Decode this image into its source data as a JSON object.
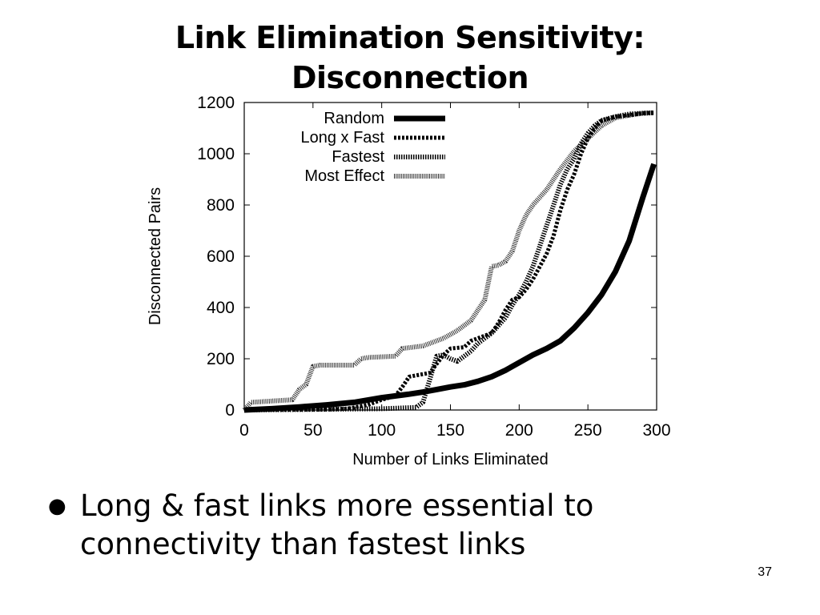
{
  "slide": {
    "title_line1": "Link Elimination Sensitivity:",
    "title_line2": "Disconnection",
    "bullet": "Long & fast links more essential to connectivity than fastest links",
    "page_number": "37"
  },
  "chart_data": {
    "type": "line",
    "title": "",
    "xlabel": "Number of Links Eliminated",
    "ylabel": "Disconnected Pairs",
    "xlim": [
      0,
      300
    ],
    "ylim": [
      0,
      1200
    ],
    "xticks": [
      0,
      50,
      100,
      150,
      200,
      250,
      300
    ],
    "yticks": [
      0,
      200,
      400,
      600,
      800,
      1000,
      1200
    ],
    "grid": false,
    "legend_position": "top-left",
    "series": [
      {
        "name": "Random",
        "style": "solid-thick",
        "color": "#000000",
        "points": [
          [
            0,
            0
          ],
          [
            20,
            5
          ],
          [
            40,
            12
          ],
          [
            60,
            20
          ],
          [
            80,
            30
          ],
          [
            100,
            48
          ],
          [
            120,
            62
          ],
          [
            130,
            70
          ],
          [
            140,
            80
          ],
          [
            150,
            90
          ],
          [
            160,
            98
          ],
          [
            170,
            112
          ],
          [
            180,
            130
          ],
          [
            190,
            155
          ],
          [
            200,
            185
          ],
          [
            210,
            215
          ],
          [
            220,
            240
          ],
          [
            230,
            270
          ],
          [
            240,
            320
          ],
          [
            250,
            380
          ],
          [
            260,
            450
          ],
          [
            270,
            540
          ],
          [
            280,
            660
          ],
          [
            290,
            830
          ],
          [
            298,
            960
          ]
        ]
      },
      {
        "name": "Long x Fast",
        "style": "dashed",
        "color": "#000000",
        "points": [
          [
            0,
            0
          ],
          [
            60,
            2
          ],
          [
            75,
            5
          ],
          [
            90,
            20
          ],
          [
            100,
            40
          ],
          [
            110,
            55
          ],
          [
            115,
            90
          ],
          [
            120,
            130
          ],
          [
            125,
            135
          ],
          [
            135,
            145
          ],
          [
            140,
            180
          ],
          [
            145,
            215
          ],
          [
            150,
            240
          ],
          [
            160,
            245
          ],
          [
            165,
            270
          ],
          [
            170,
            280
          ],
          [
            180,
            300
          ],
          [
            185,
            340
          ],
          [
            190,
            390
          ],
          [
            195,
            430
          ],
          [
            200,
            440
          ],
          [
            205,
            470
          ],
          [
            210,
            510
          ],
          [
            215,
            560
          ],
          [
            220,
            610
          ],
          [
            225,
            680
          ],
          [
            230,
            780
          ],
          [
            235,
            860
          ],
          [
            240,
            920
          ],
          [
            245,
            1000
          ],
          [
            250,
            1060
          ],
          [
            255,
            1100
          ],
          [
            260,
            1130
          ],
          [
            270,
            1145
          ],
          [
            280,
            1150
          ],
          [
            290,
            1158
          ],
          [
            298,
            1160
          ]
        ]
      },
      {
        "name": "Fastest",
        "style": "dotted",
        "color": "#000000",
        "points": [
          [
            0,
            0
          ],
          [
            100,
            5
          ],
          [
            125,
            10
          ],
          [
            130,
            30
          ],
          [
            135,
            120
          ],
          [
            140,
            210
          ],
          [
            145,
            215
          ],
          [
            150,
            200
          ],
          [
            155,
            190
          ],
          [
            160,
            210
          ],
          [
            165,
            230
          ],
          [
            170,
            260
          ],
          [
            175,
            280
          ],
          [
            180,
            300
          ],
          [
            185,
            330
          ],
          [
            190,
            360
          ],
          [
            195,
            410
          ],
          [
            200,
            450
          ],
          [
            205,
            500
          ],
          [
            210,
            560
          ],
          [
            215,
            640
          ],
          [
            220,
            720
          ],
          [
            225,
            800
          ],
          [
            230,
            880
          ],
          [
            235,
            940
          ],
          [
            240,
            980
          ],
          [
            245,
            1040
          ],
          [
            250,
            1080
          ],
          [
            255,
            1110
          ],
          [
            260,
            1130
          ],
          [
            270,
            1145
          ],
          [
            280,
            1155
          ],
          [
            290,
            1158
          ],
          [
            298,
            1160
          ]
        ]
      },
      {
        "name": "Most Effect",
        "style": "dotted-grey",
        "color": "#333333",
        "points": [
          [
            0,
            0
          ],
          [
            5,
            30
          ],
          [
            20,
            35
          ],
          [
            35,
            40
          ],
          [
            40,
            80
          ],
          [
            45,
            100
          ],
          [
            50,
            170
          ],
          [
            55,
            175
          ],
          [
            80,
            175
          ],
          [
            85,
            200
          ],
          [
            90,
            205
          ],
          [
            110,
            210
          ],
          [
            115,
            240
          ],
          [
            130,
            250
          ],
          [
            135,
            260
          ],
          [
            145,
            280
          ],
          [
            155,
            310
          ],
          [
            165,
            350
          ],
          [
            170,
            390
          ],
          [
            175,
            430
          ],
          [
            180,
            560
          ],
          [
            185,
            565
          ],
          [
            190,
            580
          ],
          [
            195,
            620
          ],
          [
            200,
            700
          ],
          [
            205,
            760
          ],
          [
            210,
            800
          ],
          [
            220,
            860
          ],
          [
            230,
            940
          ],
          [
            240,
            1010
          ],
          [
            250,
            1060
          ],
          [
            260,
            1110
          ],
          [
            270,
            1140
          ],
          [
            280,
            1150
          ],
          [
            290,
            1158
          ],
          [
            298,
            1160
          ]
        ]
      }
    ]
  }
}
